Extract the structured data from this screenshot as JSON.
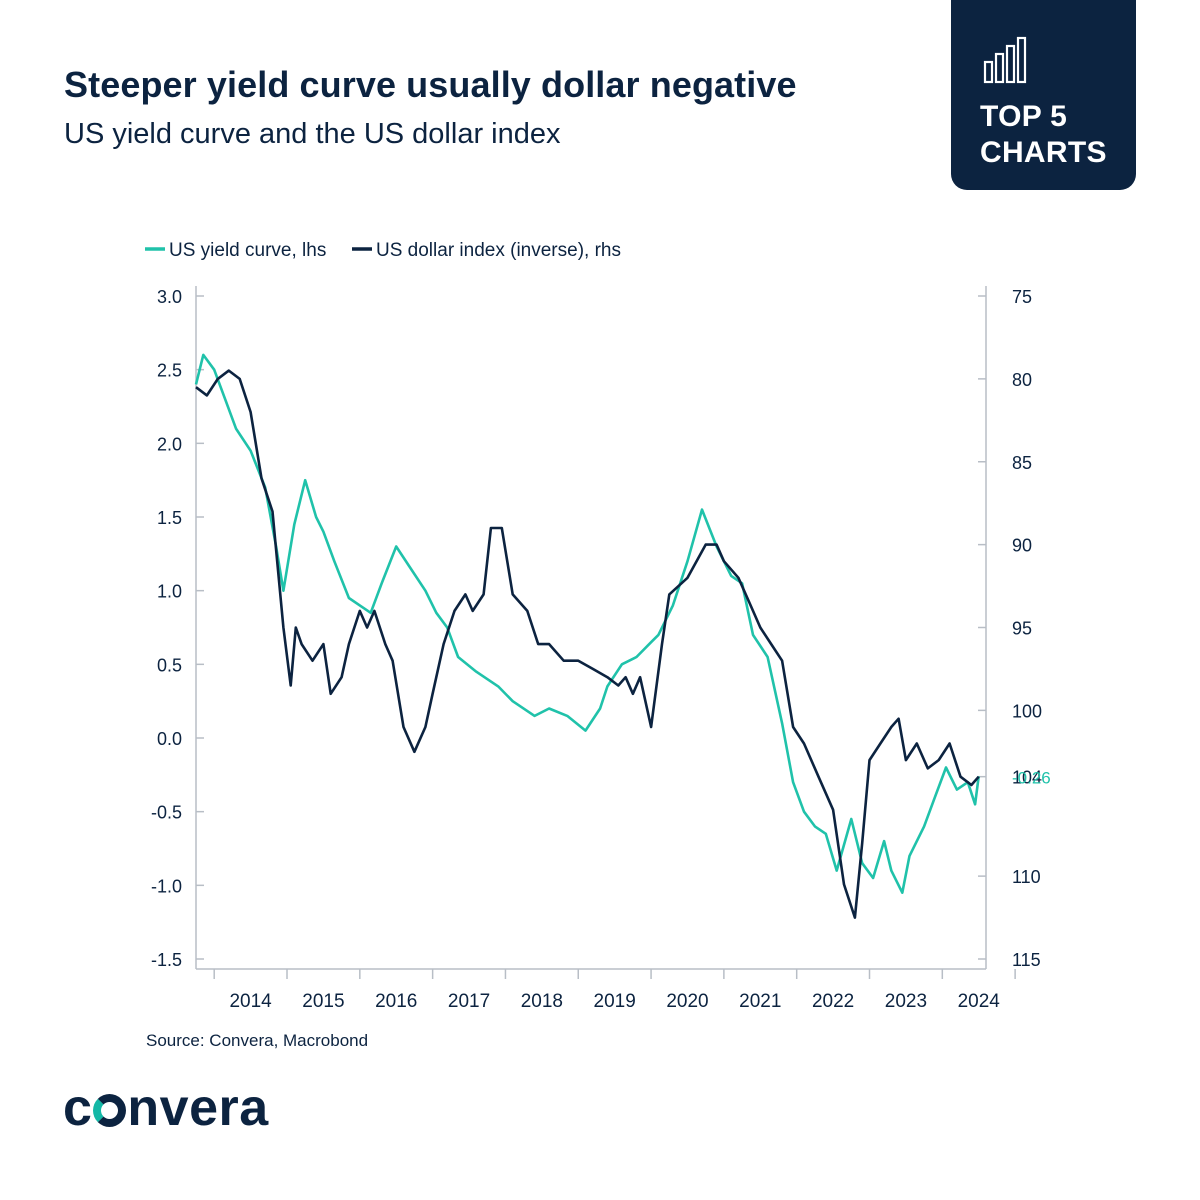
{
  "header": {
    "title": "Steeper yield curve usually dollar negative",
    "subtitle": "US yield curve and the US dollar index"
  },
  "badge": {
    "line1": "TOP 5",
    "line2": "CHARTS",
    "icon": "bar-chart-icon"
  },
  "colors": {
    "navy": "#0c2340",
    "teal": "#20c2aa",
    "grey": "#b8bec6"
  },
  "chart_data": {
    "type": "line",
    "title": "",
    "legend": "top-left",
    "x_range": [
      2013.75,
      2024.6
    ],
    "x_ticks": [
      "2014",
      "2015",
      "2016",
      "2017",
      "2018",
      "2019",
      "2020",
      "2021",
      "2022",
      "2023",
      "2024"
    ],
    "y_left": {
      "label": "lhs",
      "range": [
        -1.5,
        3.0
      ],
      "ticks": [
        "3.0",
        "2.5",
        "2.0",
        "1.5",
        "1.0",
        "0.5",
        "0.0",
        "-0.5",
        "-1.0",
        "-1.5"
      ]
    },
    "y_right": {
      "label": "rhs",
      "inverted": true,
      "range": [
        75,
        115
      ],
      "ticks": [
        "75",
        "80",
        "85",
        "90",
        "95",
        "100",
        "104",
        "110",
        "115"
      ]
    },
    "series": [
      {
        "name": "US yield curve, lhs",
        "axis": "left",
        "color": "#20c2aa",
        "x": [
          2013.75,
          2013.85,
          2014.0,
          2014.15,
          2014.3,
          2014.5,
          2014.7,
          2014.85,
          2014.95,
          2015.1,
          2015.25,
          2015.4,
          2015.5,
          2015.65,
          2015.85,
          2016.0,
          2016.15,
          2016.3,
          2016.5,
          2016.7,
          2016.9,
          2017.05,
          2017.2,
          2017.35,
          2017.6,
          2017.9,
          2018.1,
          2018.4,
          2018.6,
          2018.85,
          2019.1,
          2019.3,
          2019.4,
          2019.6,
          2019.8,
          2020.0,
          2020.1,
          2020.3,
          2020.5,
          2020.7,
          2020.9,
          2021.1,
          2021.25,
          2021.4,
          2021.6,
          2021.8,
          2021.95,
          2022.1,
          2022.25,
          2022.4,
          2022.55,
          2022.75,
          2022.9,
          2023.05,
          2023.2,
          2023.3,
          2023.45,
          2023.55,
          2023.75,
          2023.9,
          2024.05,
          2024.2,
          2024.35,
          2024.45,
          2024.5
        ],
        "values": [
          2.4,
          2.6,
          2.5,
          2.3,
          2.1,
          1.95,
          1.7,
          1.3,
          1.0,
          1.45,
          1.75,
          1.5,
          1.4,
          1.2,
          0.95,
          0.9,
          0.85,
          1.05,
          1.3,
          1.15,
          1.0,
          0.85,
          0.75,
          0.55,
          0.45,
          0.35,
          0.25,
          0.15,
          0.2,
          0.15,
          0.05,
          0.2,
          0.35,
          0.5,
          0.55,
          0.65,
          0.7,
          0.9,
          1.2,
          1.55,
          1.3,
          1.1,
          1.05,
          0.7,
          0.55,
          0.1,
          -0.3,
          -0.5,
          -0.6,
          -0.65,
          -0.9,
          -0.55,
          -0.85,
          -0.95,
          -0.7,
          -0.9,
          -1.05,
          -0.8,
          -0.6,
          -0.4,
          -0.2,
          -0.35,
          -0.3,
          -0.45,
          -0.26
        ]
      },
      {
        "name": "US dollar index (inverse), rhs",
        "axis": "right",
        "color": "#0c2340",
        "x": [
          2013.75,
          2013.9,
          2014.05,
          2014.2,
          2014.35,
          2014.5,
          2014.65,
          2014.8,
          2014.95,
          2015.05,
          2015.12,
          2015.2,
          2015.35,
          2015.5,
          2015.6,
          2015.75,
          2015.85,
          2016.0,
          2016.1,
          2016.2,
          2016.35,
          2016.45,
          2016.6,
          2016.75,
          2016.9,
          2017.0,
          2017.15,
          2017.3,
          2017.45,
          2017.55,
          2017.7,
          2017.8,
          2017.95,
          2018.1,
          2018.3,
          2018.45,
          2018.6,
          2018.8,
          2019.0,
          2019.2,
          2019.4,
          2019.55,
          2019.65,
          2019.75,
          2019.85,
          2020.0,
          2020.15,
          2020.25,
          2020.5,
          2020.75,
          2020.9,
          2021.0,
          2021.2,
          2021.35,
          2021.5,
          2021.65,
          2021.8,
          2021.95,
          2022.1,
          2022.3,
          2022.5,
          2022.65,
          2022.8,
          2022.9,
          2023.0,
          2023.15,
          2023.3,
          2023.4,
          2023.5,
          2023.65,
          2023.8,
          2023.95,
          2024.1,
          2024.25,
          2024.4,
          2024.5
        ],
        "values": [
          80.5,
          81,
          80,
          79.5,
          80,
          82,
          86,
          88,
          95,
          98.5,
          95,
          96,
          97,
          96,
          99,
          98,
          96,
          94,
          95,
          94,
          96,
          97,
          101,
          102.5,
          101,
          99,
          96,
          94,
          93,
          94,
          93,
          89,
          89,
          93,
          94,
          96,
          96,
          97,
          97,
          97.5,
          98,
          98.5,
          98,
          99,
          98,
          101,
          96,
          93,
          92,
          90,
          90,
          91,
          92,
          93.5,
          95,
          96,
          97,
          101,
          102,
          104,
          106,
          110.5,
          112.5,
          108,
          103,
          102,
          101,
          100.5,
          103,
          102,
          103.5,
          103,
          102,
          104,
          104.5,
          104
        ]
      }
    ],
    "annotations": [
      {
        "text": "-0.26",
        "axis": "left",
        "y": -0.26,
        "color": "#20c2aa"
      }
    ],
    "source": "Source: Convera, Macrobond"
  },
  "footer": {
    "logo_pre": "c",
    "logo_post": "nvera"
  }
}
